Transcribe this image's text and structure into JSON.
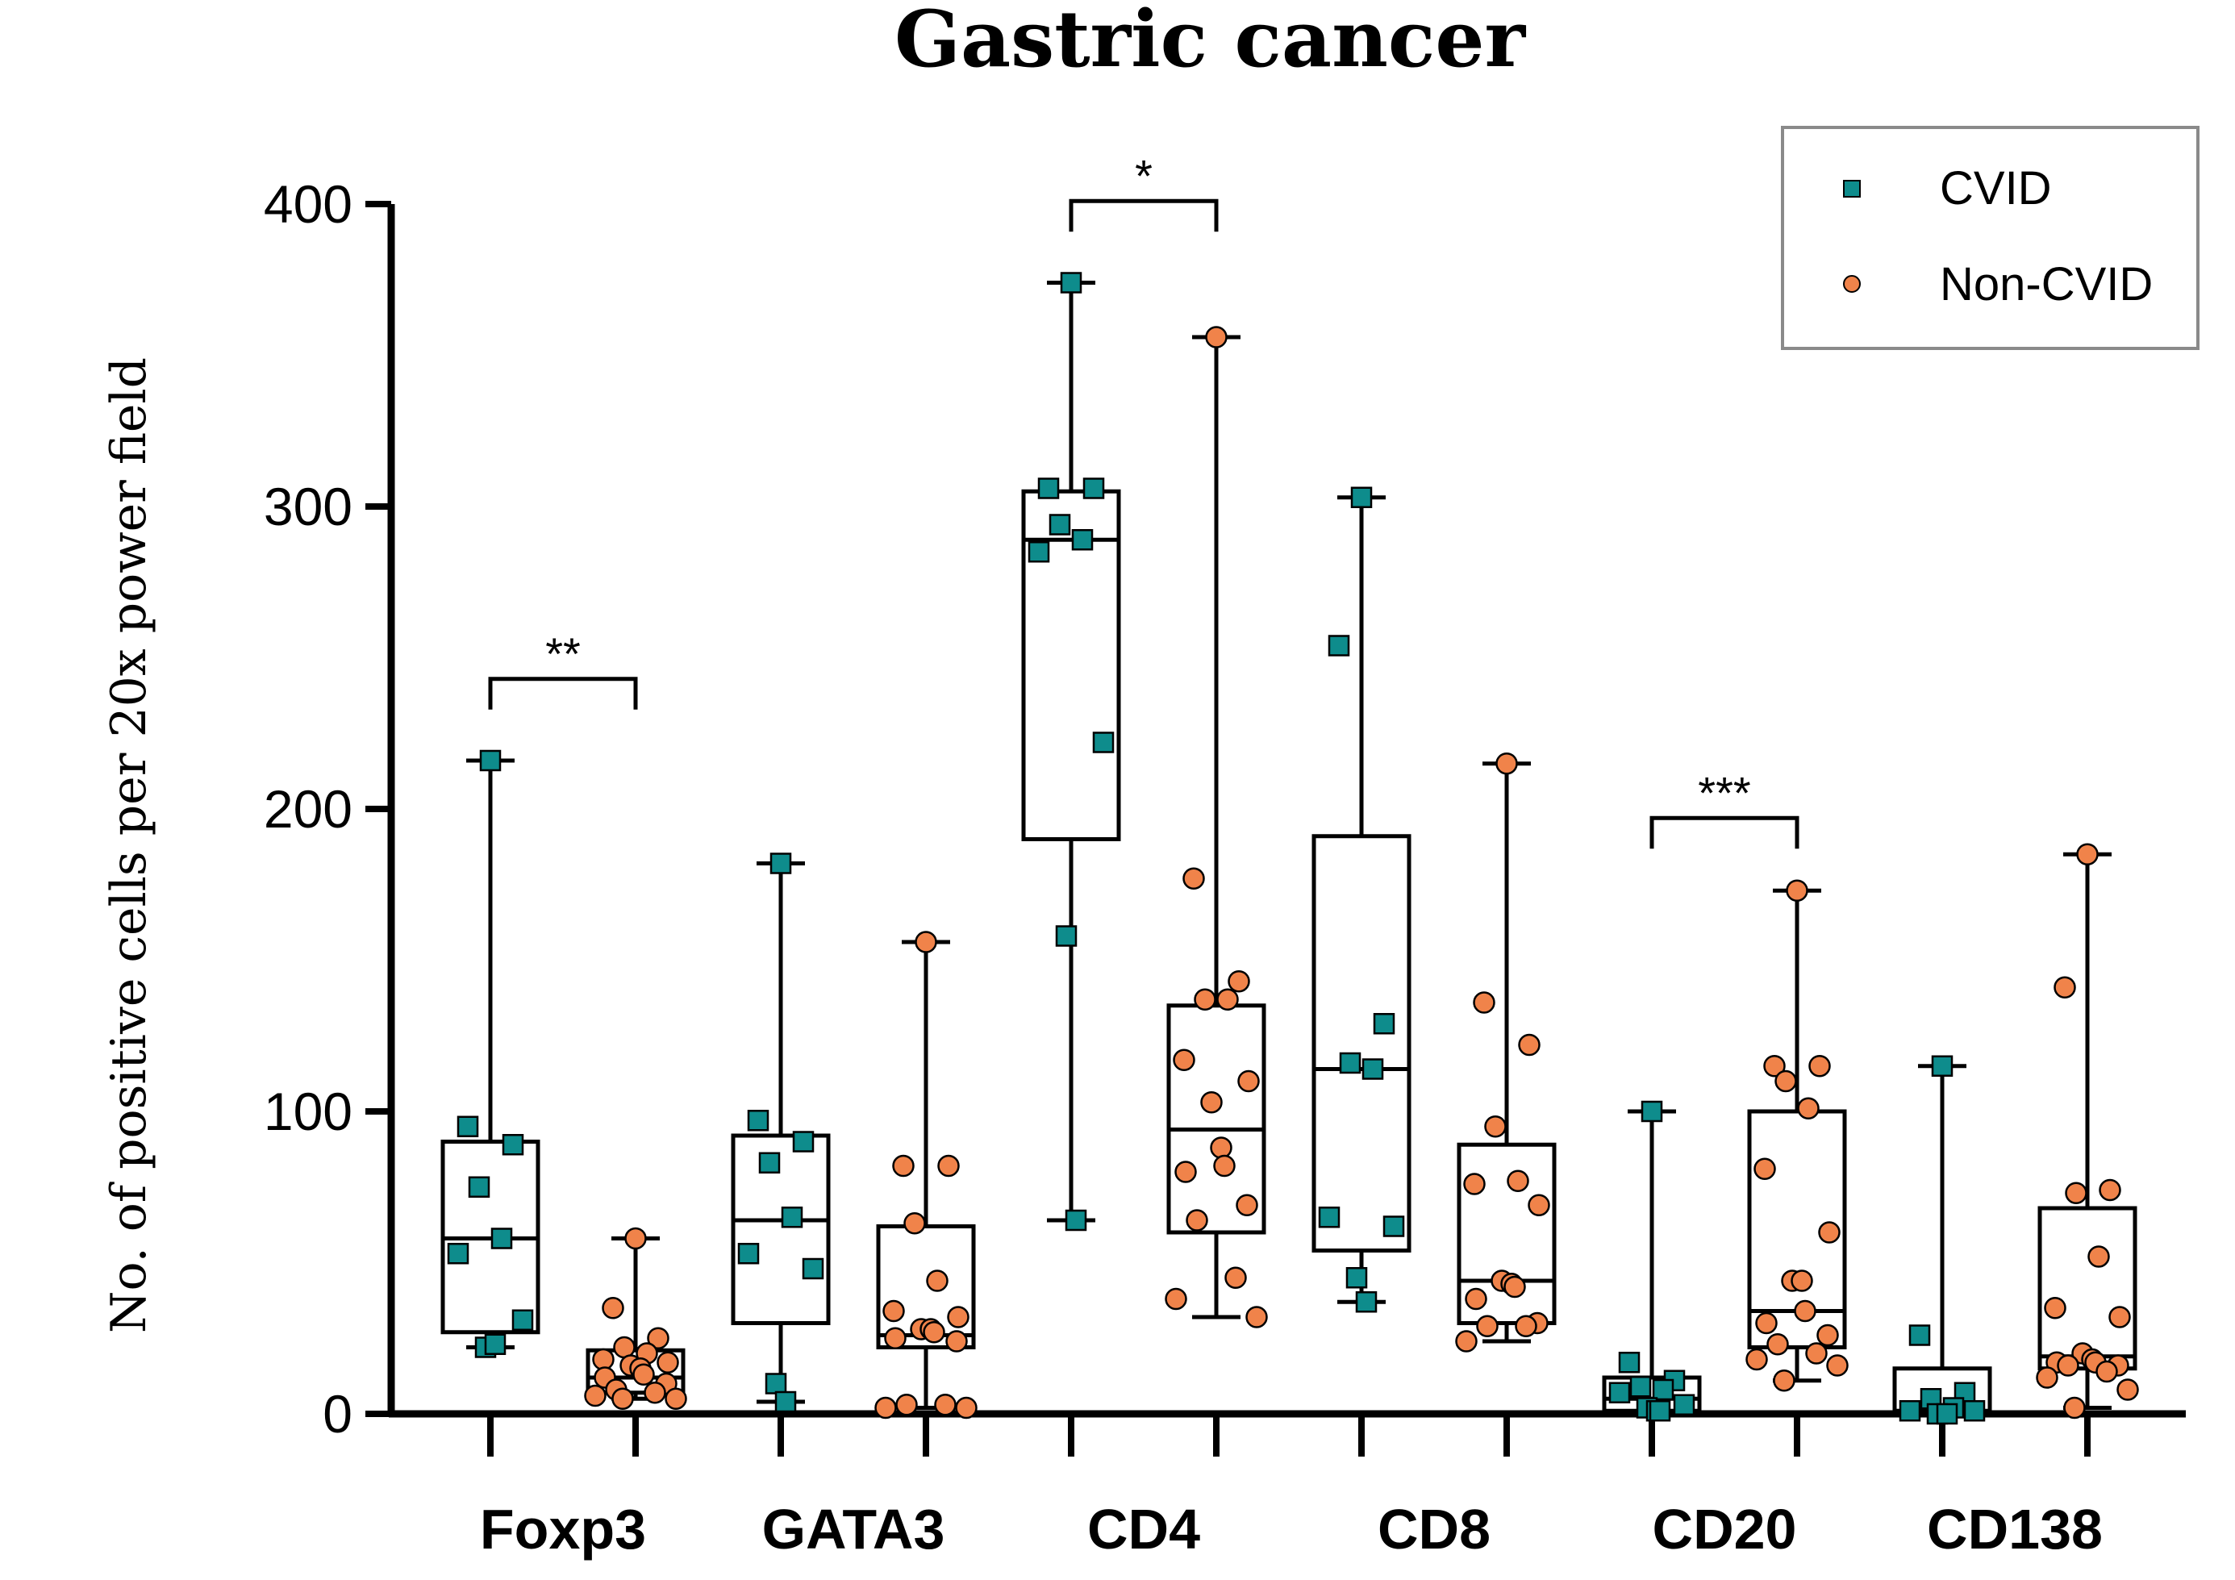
{
  "chart_data": {
    "type": "box",
    "title": "Gastric cancer",
    "xlabel": "",
    "ylabel": "No. of positive cells per 20x power field",
    "ylim": [
      0,
      400
    ],
    "yticks": [
      0,
      100,
      200,
      300,
      400
    ],
    "categories": [
      "Foxp3",
      "GATA3",
      "CD4",
      "CD8",
      "CD20",
      "CD138"
    ],
    "legend": {
      "position": "top-right",
      "entries": [
        "CVID",
        "Non-CVID"
      ]
    },
    "colors": {
      "CVID": "#0e8c8c",
      "Non-CVID": "#f0834a"
    },
    "series": [
      {
        "name": "CVID",
        "marker": "square",
        "boxes": [
          {
            "category": "Foxp3",
            "min": 22,
            "q1": 27,
            "median": 58,
            "q3": 90,
            "max": 216,
            "points": [
              216,
              95,
              89,
              75,
              58,
              53,
              31,
              22,
              23
            ]
          },
          {
            "category": "GATA3",
            "min": 4,
            "q1": 30,
            "median": 64,
            "q3": 92,
            "max": 182,
            "points": [
              182,
              97,
              90,
              83,
              65,
              53,
              48,
              10,
              4
            ]
          },
          {
            "category": "CD4",
            "min": 64,
            "q1": 190,
            "median": 289,
            "q3": 305,
            "max": 374,
            "points": [
              374,
              306,
              306,
              294,
              289,
              285,
              222,
              158,
              64
            ]
          },
          {
            "category": "CD8",
            "min": 37,
            "q1": 54,
            "median": 114,
            "q3": 191,
            "max": 303,
            "points": [
              303,
              254,
              129,
              116,
              114,
              65,
              62,
              45,
              37
            ]
          },
          {
            "category": "CD20",
            "min": 1,
            "q1": 1,
            "median": 5,
            "q3": 12,
            "max": 100,
            "points": [
              100,
              17,
              11,
              9,
              8,
              7,
              3,
              2,
              1,
              1
            ]
          },
          {
            "category": "CD138",
            "min": 0,
            "q1": 0,
            "median": 1,
            "q3": 15,
            "max": 115,
            "points": [
              115,
              26,
              7,
              5,
              2,
              1,
              1,
              0,
              0
            ]
          }
        ]
      },
      {
        "name": "Non-CVID",
        "marker": "circle",
        "boxes": [
          {
            "category": "Foxp3",
            "min": 5,
            "q1": 7,
            "median": 12,
            "q3": 21,
            "max": 58,
            "points": [
              58,
              35,
              25,
              22,
              20,
              18,
              17,
              16,
              15,
              13,
              12,
              10,
              8,
              7,
              6,
              5,
              5
            ]
          },
          {
            "category": "GATA3",
            "min": 2,
            "q1": 22,
            "median": 26,
            "q3": 62,
            "max": 156,
            "points": [
              156,
              82,
              82,
              63,
              44,
              34,
              32,
              28,
              28,
              27,
              25,
              24,
              3,
              3,
              2,
              2
            ]
          },
          {
            "category": "CD4",
            "min": 32,
            "q1": 60,
            "median": 94,
            "q3": 135,
            "max": 356,
            "points": [
              356,
              177,
              143,
              137,
              137,
              117,
              110,
              103,
              88,
              82,
              80,
              69,
              64,
              45,
              38,
              32
            ]
          },
          {
            "category": "CD8",
            "min": 24,
            "q1": 30,
            "median": 44,
            "q3": 89,
            "max": 215,
            "points": [
              215,
              136,
              122,
              95,
              77,
              76,
              69,
              44,
              43,
              42,
              38,
              30,
              29,
              29,
              24
            ]
          },
          {
            "category": "CD20",
            "min": 11,
            "q1": 22,
            "median": 34,
            "q3": 100,
            "max": 173,
            "points": [
              173,
              115,
              115,
              110,
              101,
              81,
              60,
              44,
              44,
              34,
              30,
              26,
              23,
              20,
              18,
              16,
              11
            ]
          },
          {
            "category": "CD138",
            "min": 2,
            "q1": 15,
            "median": 19,
            "q3": 68,
            "max": 185,
            "points": [
              185,
              141,
              74,
              73,
              52,
              35,
              32,
              20,
              18,
              17,
              17,
              16,
              16,
              14,
              12,
              8,
              2
            ]
          }
        ]
      }
    ],
    "significance": [
      {
        "category": "Foxp3",
        "label": "**",
        "y": 243
      },
      {
        "category": "CD4",
        "label": "*",
        "y": 401
      },
      {
        "category": "CD20",
        "label": "***",
        "y": 197
      }
    ]
  }
}
